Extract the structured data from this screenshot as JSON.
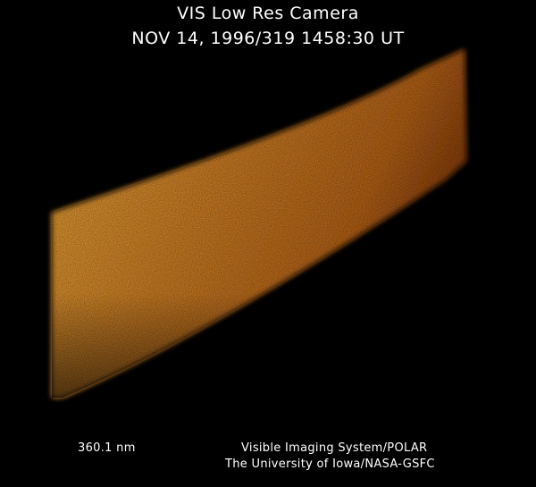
{
  "header": {
    "title": "VIS Low Res Camera",
    "timestamp": "NOV 14, 1996/319 1458:30 UT"
  },
  "footer": {
    "wavelength": "360.1 nm",
    "credit_line1": "Visible Imaging System/POLAR",
    "credit_line2": "The University of Iowa/NASA-GSFC"
  },
  "colors": {
    "background": "#000000",
    "bright": "#ffb43c",
    "mid": "#d8781c",
    "dark": "#7a3208"
  }
}
